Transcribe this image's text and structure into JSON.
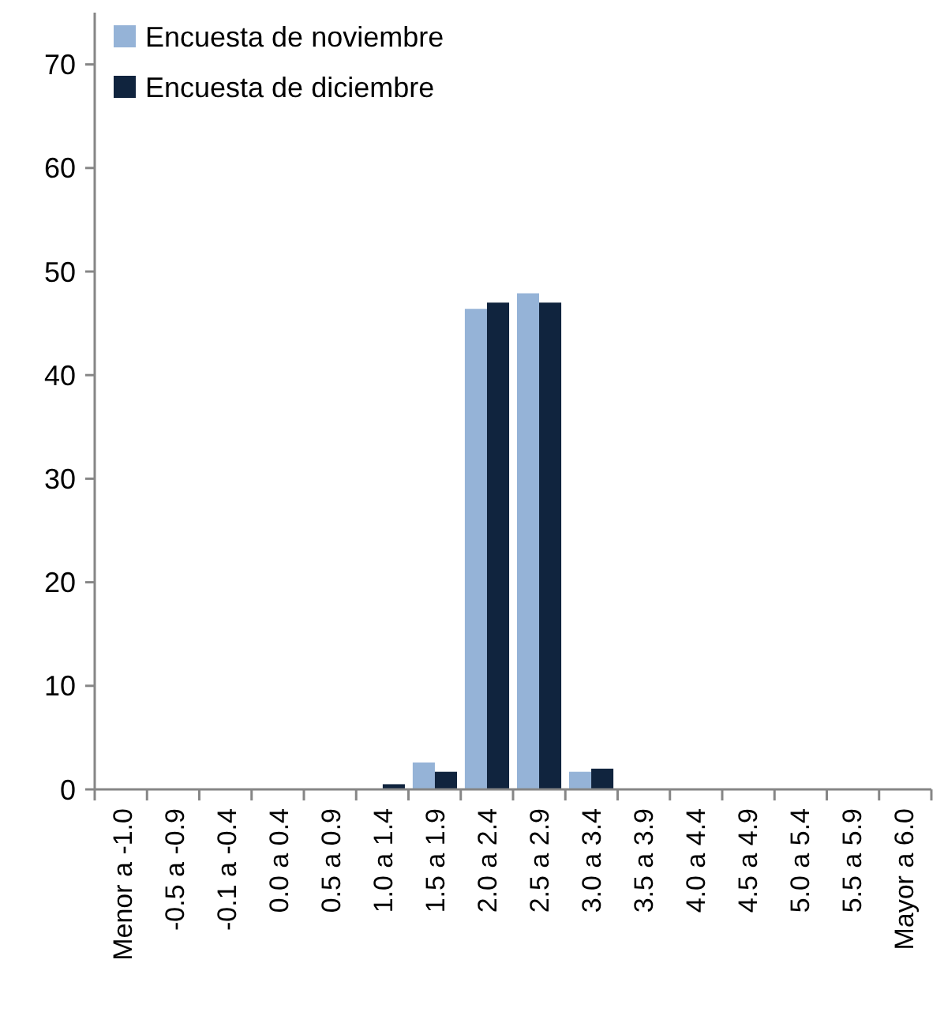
{
  "chart_data": {
    "type": "bar",
    "categories": [
      "Menor a -1.0",
      "-0.5 a -0.9",
      "-0.1 a -0.4",
      "0.0 a 0.4",
      "0.5 a 0.9",
      "1.0 a 1.4",
      "1.5 a 1.9",
      "2.0 a 2.4",
      "2.5 a 2.9",
      "3.0 a 3.4",
      "3.5 a 3.9",
      "4.0 a 4.4",
      "4.5 a 4.9",
      "5.0 a 5.4",
      "5.5 a 5.9",
      "Mayor a 6.0"
    ],
    "series": [
      {
        "name": "Encuesta de noviembre",
        "color": "#95b3d7",
        "values": [
          0,
          0,
          0,
          0,
          0,
          0,
          2.6,
          46.4,
          47.9,
          1.7,
          0,
          0,
          0,
          0,
          0,
          0
        ]
      },
      {
        "name": "Encuesta de diciembre",
        "color": "#10243e",
        "values": [
          0,
          0,
          0,
          0,
          0,
          0.5,
          1.7,
          47.0,
          47.0,
          2.0,
          0,
          0,
          0,
          0,
          0,
          0
        ]
      }
    ],
    "ylim": [
      0,
      75
    ],
    "yticks": [
      0,
      10,
      20,
      30,
      40,
      50,
      60,
      70
    ],
    "grid": false,
    "legend": "top left"
  }
}
